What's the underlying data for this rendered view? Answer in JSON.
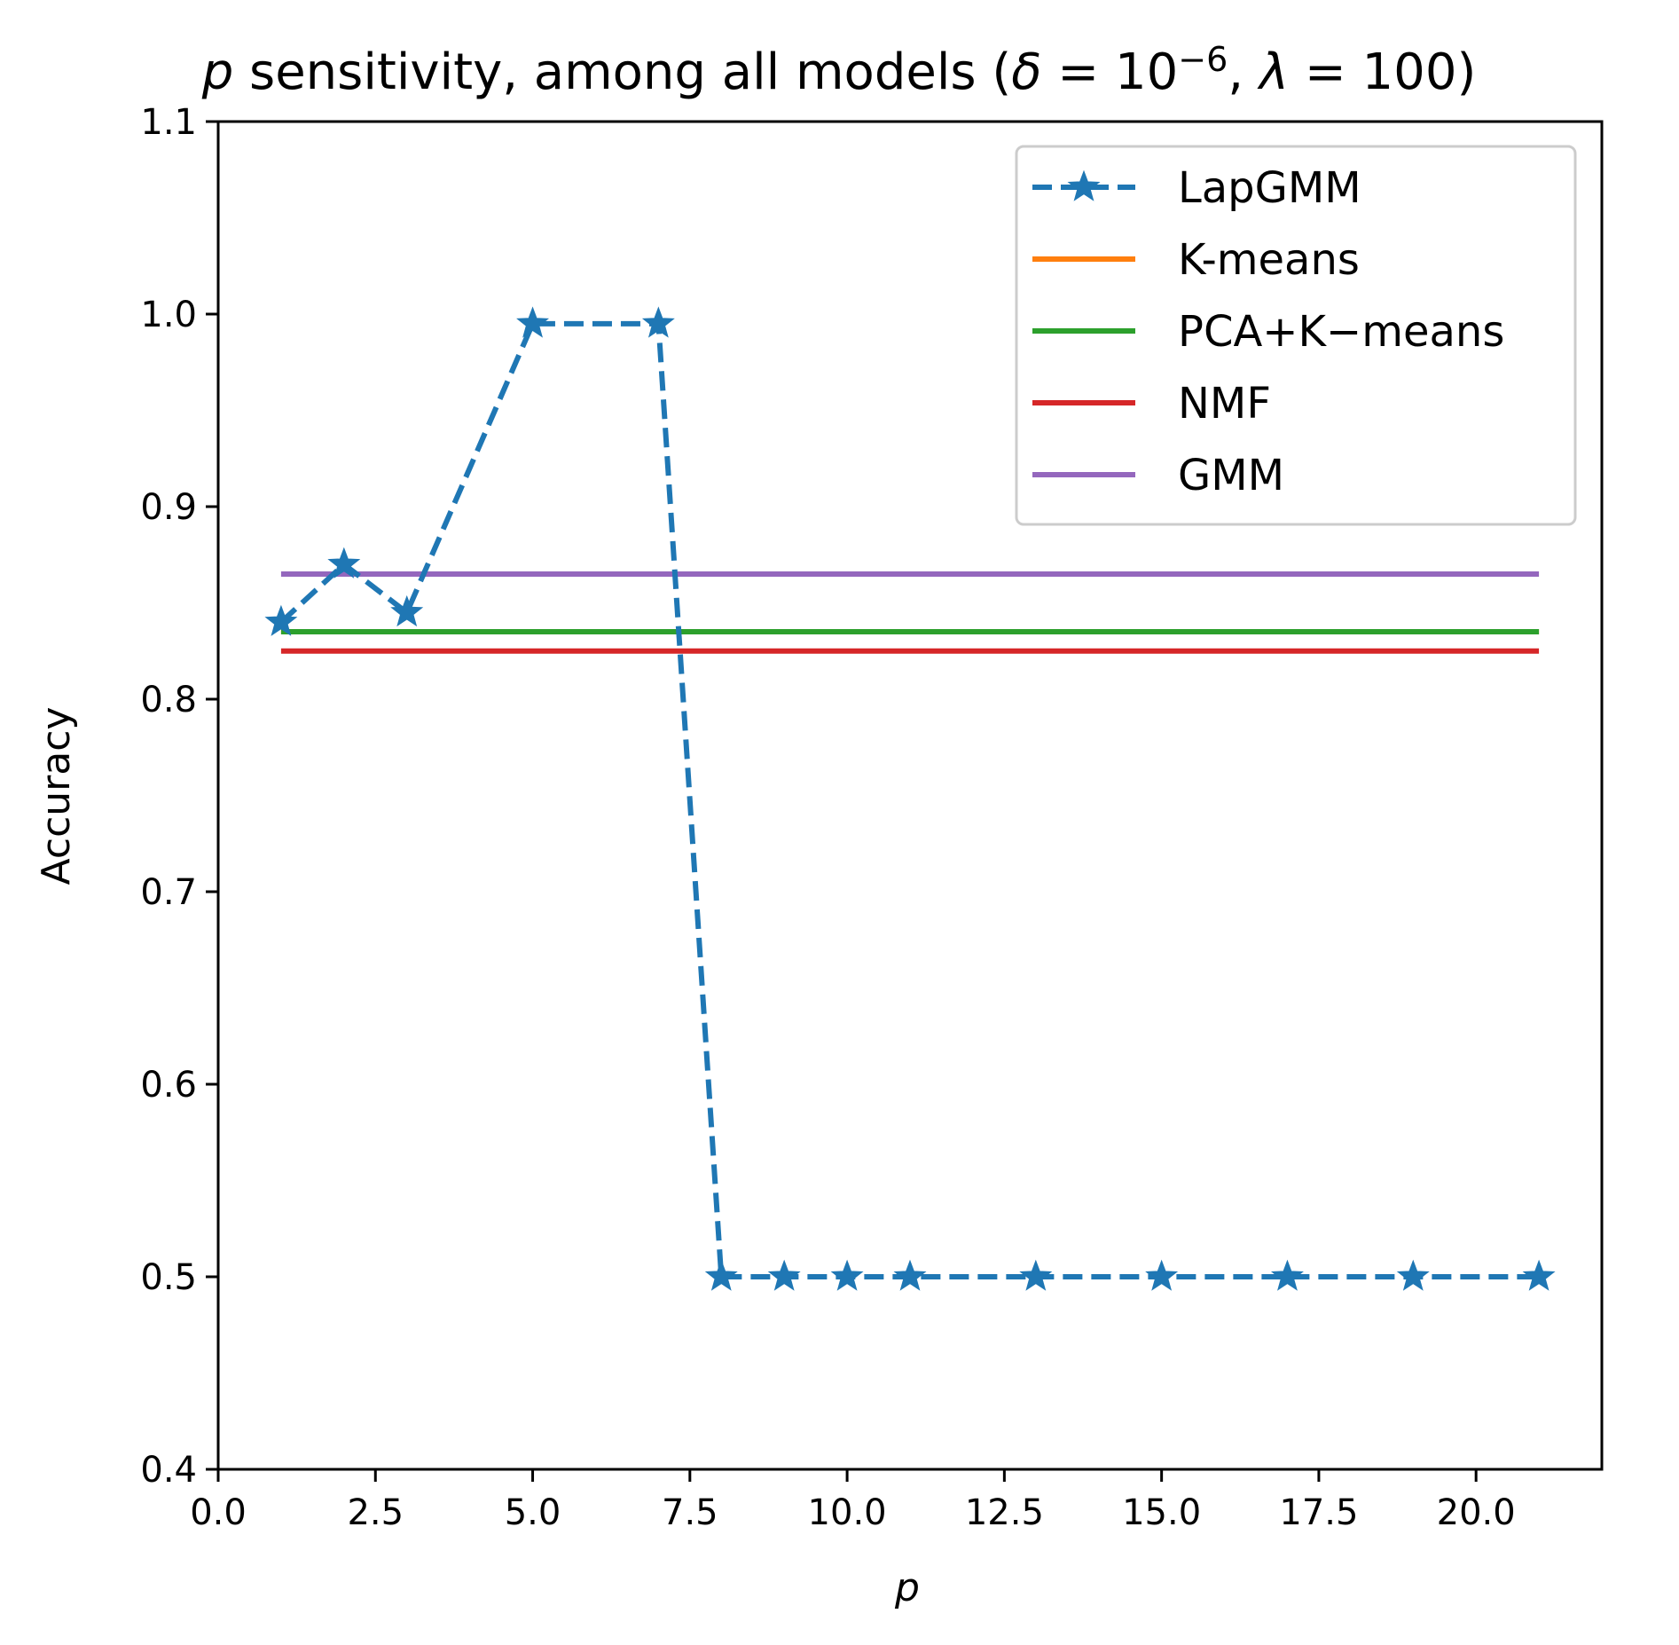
{
  "chart_data": {
    "type": "line",
    "title": {
      "p": "p",
      "main": " sensitivity, among all models (",
      "delta": "δ",
      "eq1": " = 10",
      "exp": "−6",
      "sep": ", ",
      "lambda": "λ",
      "eq2": " = 100)"
    },
    "xlabel": "p",
    "ylabel": "Accuracy",
    "xlim": [
      0,
      22
    ],
    "ylim": [
      0.4,
      1.1
    ],
    "xticks": [
      0,
      2.5,
      5,
      7.5,
      10,
      12.5,
      15,
      17.5,
      20
    ],
    "xtick_labels": [
      "0.0",
      "2.5",
      "5.0",
      "7.5",
      "10.0",
      "12.5",
      "15.0",
      "17.5",
      "20.0"
    ],
    "yticks": [
      0.4,
      0.5,
      0.6,
      0.7,
      0.8,
      0.9,
      1.0,
      1.1
    ],
    "ytick_labels": [
      "0.4",
      "0.5",
      "0.6",
      "0.7",
      "0.8",
      "0.9",
      "1.0",
      "1.1"
    ],
    "legend_position": "upper-right",
    "series": [
      {
        "name": "LapGMM",
        "color": "#1f77b4",
        "style": "dashed-star",
        "x": [
          1,
          2,
          3,
          5,
          7,
          8,
          9,
          10,
          11,
          13,
          15,
          17,
          19,
          21
        ],
        "y": [
          0.84,
          0.87,
          0.845,
          0.995,
          0.995,
          0.5,
          0.5,
          0.5,
          0.5,
          0.5,
          0.5,
          0.5,
          0.5,
          0.5
        ]
      },
      {
        "name": "K-means",
        "color": "#ff7f0e",
        "style": "solid",
        "x": [
          1,
          21
        ],
        "y": [
          0.835,
          0.835
        ]
      },
      {
        "name": "PCA+K−means",
        "color": "#2ca02c",
        "style": "solid",
        "x": [
          1,
          21
        ],
        "y": [
          0.835,
          0.835
        ]
      },
      {
        "name": "NMF",
        "color": "#d62728",
        "style": "solid",
        "x": [
          1,
          21
        ],
        "y": [
          0.825,
          0.825
        ]
      },
      {
        "name": "GMM",
        "color": "#9467bd",
        "style": "solid",
        "x": [
          1,
          21
        ],
        "y": [
          0.865,
          0.865
        ]
      }
    ]
  }
}
